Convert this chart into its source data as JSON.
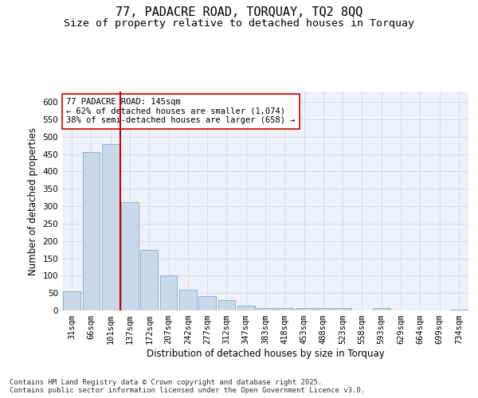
{
  "title_line1": "77, PADACRE ROAD, TORQUAY, TQ2 8QQ",
  "title_line2": "Size of property relative to detached houses in Torquay",
  "xlabel": "Distribution of detached houses by size in Torquay",
  "ylabel": "Number of detached properties",
  "categories": [
    "31sqm",
    "66sqm",
    "101sqm",
    "137sqm",
    "172sqm",
    "207sqm",
    "242sqm",
    "277sqm",
    "312sqm",
    "347sqm",
    "383sqm",
    "418sqm",
    "453sqm",
    "488sqm",
    "523sqm",
    "558sqm",
    "593sqm",
    "629sqm",
    "664sqm",
    "699sqm",
    "734sqm"
  ],
  "values": [
    54,
    455,
    478,
    312,
    173,
    100,
    59,
    42,
    30,
    14,
    8,
    8,
    8,
    8,
    6,
    0,
    8,
    0,
    0,
    0,
    3
  ],
  "bar_color": "#c9d9ea",
  "bar_edge_color": "#7aaac8",
  "vline_index": 3,
  "vline_color": "#cc0000",
  "annotation_text": "77 PADACRE ROAD: 145sqm\n← 62% of detached houses are smaller (1,074)\n38% of semi-detached houses are larger (658) →",
  "annotation_box_color": "white",
  "annotation_box_edge_color": "#cc0000",
  "ylim": [
    0,
    630
  ],
  "yticks": [
    0,
    50,
    100,
    150,
    200,
    250,
    300,
    350,
    400,
    450,
    500,
    550,
    600
  ],
  "grid_color": "#d0d8e8",
  "bg_color": "#eef2f8",
  "footer_line1": "Contains HM Land Registry data © Crown copyright and database right 2025.",
  "footer_line2": "Contains public sector information licensed under the Open Government Licence v3.0.",
  "title_fontsize": 11,
  "subtitle_fontsize": 9.5,
  "axis_label_fontsize": 8.5,
  "tick_fontsize": 7.5,
  "annotation_fontsize": 7.5,
  "footer_fontsize": 6.5
}
